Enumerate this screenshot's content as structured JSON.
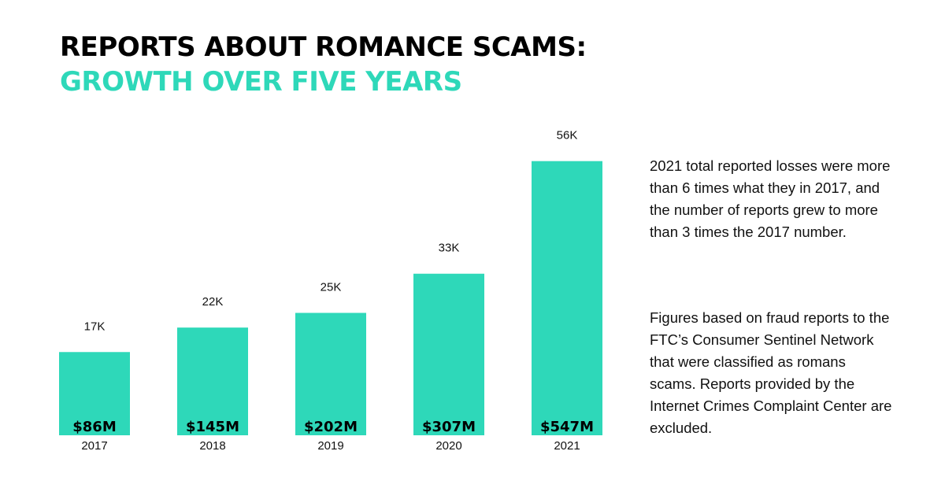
{
  "title": {
    "line1": "REPORTS ABOUT ROMANCE SCAMS:",
    "line2": "GROWTH OVER FIVE YEARS"
  },
  "colors": {
    "bar": "#2ed8b9",
    "title_accent": "#2ed8b9",
    "text": "#111111"
  },
  "chart_data": {
    "type": "bar",
    "categories": [
      "2017",
      "2018",
      "2019",
      "2020",
      "2021"
    ],
    "series": [
      {
        "values": [
          17,
          22,
          25,
          33,
          56
        ],
        "value_labels": [
          "17K",
          "22K",
          "25K",
          "33K",
          "56K"
        ]
      }
    ],
    "inner_labels": [
      "$86M",
      "$145M",
      "$202M",
      "$307M",
      "$547M"
    ],
    "ylim": [
      0,
      60
    ],
    "grid": false,
    "legend": "none"
  },
  "notes": {
    "summary": "2021 total reported losses were more than 6 times what they in 2017, and the number of reports grew to more than 3 times the 2017 number.",
    "source": "Figures based on fraud reports to the FTC’s Consumer Sentinel Network that were classified as romans scams. Reports provided by the Internet Crimes Complaint Center are excluded."
  }
}
